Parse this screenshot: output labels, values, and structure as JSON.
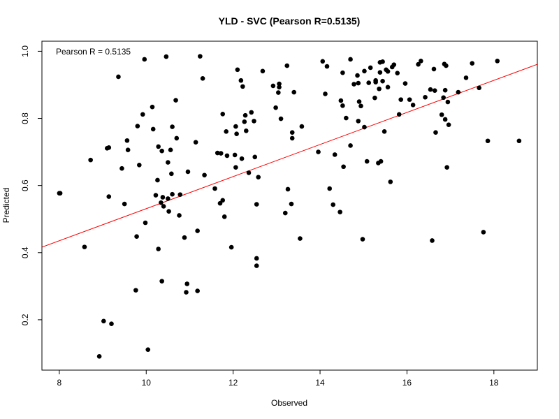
{
  "chart_data": {
    "type": "scatter",
    "title": "YLD - SVC (Pearson R=0.5135)",
    "xlabel": "Observed",
    "ylabel": "Predicted",
    "annotation": "Pearson R = 0.5135",
    "xlim": [
      7.6,
      19.0
    ],
    "ylim": [
      0.05,
      1.03
    ],
    "xticks": [
      8,
      10,
      12,
      14,
      16,
      18
    ],
    "yticks": [
      0.2,
      0.4,
      0.6,
      0.8,
      1.0
    ],
    "xtick_labels": [
      "8",
      "10",
      "12",
      "14",
      "16",
      "18"
    ],
    "ytick_labels": [
      "0.2",
      "0.4",
      "0.6",
      "0.8",
      "1.0"
    ],
    "grid": false,
    "point_color": "#000000",
    "fit_line": {
      "color": "#ff0000",
      "intercept": 0.053,
      "slope": 0.0478
    },
    "points": [
      [
        8.0,
        0.577
      ],
      [
        8.02,
        0.577
      ],
      [
        8.58,
        0.417
      ],
      [
        8.72,
        0.676
      ],
      [
        8.92,
        0.091
      ],
      [
        9.02,
        0.196
      ],
      [
        9.1,
        0.711
      ],
      [
        9.14,
        0.713
      ],
      [
        9.14,
        0.567
      ],
      [
        9.2,
        0.188
      ],
      [
        9.36,
        0.924
      ],
      [
        9.44,
        0.651
      ],
      [
        9.5,
        0.545
      ],
      [
        9.56,
        0.734
      ],
      [
        9.58,
        0.706
      ],
      [
        9.76,
        0.288
      ],
      [
        9.78,
        0.448
      ],
      [
        9.8,
        0.777
      ],
      [
        9.84,
        0.661
      ],
      [
        9.92,
        0.812
      ],
      [
        9.96,
        0.976
      ],
      [
        9.98,
        0.489
      ],
      [
        10.04,
        0.111
      ],
      [
        10.14,
        0.834
      ],
      [
        10.16,
        0.768
      ],
      [
        10.22,
        0.571
      ],
      [
        10.26,
        0.616
      ],
      [
        10.28,
        0.411
      ],
      [
        10.28,
        0.716
      ],
      [
        10.34,
        0.549
      ],
      [
        10.36,
        0.315
      ],
      [
        10.36,
        0.703
      ],
      [
        10.38,
        0.565
      ],
      [
        10.4,
        0.538
      ],
      [
        10.46,
        0.984
      ],
      [
        10.5,
        0.669
      ],
      [
        10.5,
        0.561
      ],
      [
        10.52,
        0.523
      ],
      [
        10.56,
        0.706
      ],
      [
        10.58,
        0.635
      ],
      [
        10.6,
        0.775
      ],
      [
        10.6,
        0.574
      ],
      [
        10.68,
        0.854
      ],
      [
        10.7,
        0.741
      ],
      [
        10.76,
        0.511
      ],
      [
        10.78,
        0.573
      ],
      [
        10.88,
        0.445
      ],
      [
        10.92,
        0.282
      ],
      [
        10.94,
        0.307
      ],
      [
        10.96,
        0.641
      ],
      [
        11.14,
        0.729
      ],
      [
        11.18,
        0.465
      ],
      [
        11.18,
        0.286
      ],
      [
        11.24,
        0.985
      ],
      [
        11.3,
        0.919
      ],
      [
        11.34,
        0.631
      ],
      [
        11.58,
        0.591
      ],
      [
        11.64,
        0.697
      ],
      [
        11.7,
        0.547
      ],
      [
        11.72,
        0.696
      ],
      [
        11.76,
        0.556
      ],
      [
        11.76,
        0.813
      ],
      [
        11.8,
        0.507
      ],
      [
        11.84,
        0.761
      ],
      [
        11.86,
        0.689
      ],
      [
        11.96,
        0.416
      ],
      [
        12.04,
        0.691
      ],
      [
        12.06,
        0.776
      ],
      [
        12.06,
        0.654
      ],
      [
        12.08,
        0.754
      ],
      [
        12.1,
        0.945
      ],
      [
        12.18,
        0.913
      ],
      [
        12.2,
        0.68
      ],
      [
        12.22,
        0.895
      ],
      [
        12.26,
        0.79
      ],
      [
        12.28,
        0.809
      ],
      [
        12.3,
        0.763
      ],
      [
        12.36,
        0.638
      ],
      [
        12.42,
        0.818
      ],
      [
        12.48,
        0.792
      ],
      [
        12.5,
        0.685
      ],
      [
        12.54,
        0.544
      ],
      [
        12.54,
        0.383
      ],
      [
        12.54,
        0.361
      ],
      [
        12.58,
        0.625
      ],
      [
        12.68,
        0.941
      ],
      [
        12.92,
        0.897
      ],
      [
        12.98,
        0.832
      ],
      [
        13.04,
        0.877
      ],
      [
        13.06,
        0.903
      ],
      [
        13.06,
        0.893
      ],
      [
        13.1,
        0.799
      ],
      [
        13.2,
        0.518
      ],
      [
        13.24,
        0.957
      ],
      [
        13.26,
        0.589
      ],
      [
        13.34,
        0.545
      ],
      [
        13.36,
        0.758
      ],
      [
        13.36,
        0.741
      ],
      [
        13.4,
        0.878
      ],
      [
        13.54,
        0.442
      ],
      [
        13.58,
        0.776
      ],
      [
        13.96,
        0.7
      ],
      [
        14.06,
        0.97
      ],
      [
        14.12,
        0.873
      ],
      [
        14.16,
        0.955
      ],
      [
        14.22,
        0.591
      ],
      [
        14.3,
        0.543
      ],
      [
        14.34,
        0.692
      ],
      [
        14.46,
        0.521
      ],
      [
        14.48,
        0.853
      ],
      [
        14.52,
        0.936
      ],
      [
        14.52,
        0.838
      ],
      [
        14.54,
        0.656
      ],
      [
        14.6,
        0.801
      ],
      [
        14.7,
        0.976
      ],
      [
        14.7,
        0.719
      ],
      [
        14.78,
        0.902
      ],
      [
        14.86,
        0.928
      ],
      [
        14.88,
        0.792
      ],
      [
        14.88,
        0.905
      ],
      [
        14.9,
        0.85
      ],
      [
        14.94,
        0.837
      ],
      [
        14.98,
        0.44
      ],
      [
        15.02,
        0.774
      ],
      [
        15.02,
        0.941
      ],
      [
        15.08,
        0.672
      ],
      [
        15.12,
        0.906
      ],
      [
        15.16,
        0.951
      ],
      [
        15.26,
        0.861
      ],
      [
        15.28,
        0.913
      ],
      [
        15.28,
        0.908
      ],
      [
        15.34,
        0.667
      ],
      [
        15.36,
        0.888
      ],
      [
        15.38,
        0.937
      ],
      [
        15.38,
        0.967
      ],
      [
        15.4,
        0.672
      ],
      [
        15.44,
        0.969
      ],
      [
        15.44,
        0.911
      ],
      [
        15.48,
        0.761
      ],
      [
        15.52,
        0.945
      ],
      [
        15.56,
        0.893
      ],
      [
        15.56,
        0.94
      ],
      [
        15.62,
        0.611
      ],
      [
        15.66,
        0.953
      ],
      [
        15.7,
        0.96
      ],
      [
        15.78,
        0.935
      ],
      [
        15.82,
        0.812
      ],
      [
        15.86,
        0.856
      ],
      [
        15.96,
        0.904
      ],
      [
        16.06,
        0.856
      ],
      [
        16.14,
        0.84
      ],
      [
        16.26,
        0.961
      ],
      [
        16.32,
        0.971
      ],
      [
        16.42,
        0.863
      ],
      [
        16.54,
        0.886
      ],
      [
        16.58,
        0.436
      ],
      [
        16.62,
        0.947
      ],
      [
        16.64,
        0.883
      ],
      [
        16.66,
        0.758
      ],
      [
        16.8,
        0.811
      ],
      [
        16.84,
        0.862
      ],
      [
        16.86,
        0.962
      ],
      [
        16.88,
        0.884
      ],
      [
        16.88,
        0.797
      ],
      [
        16.9,
        0.957
      ],
      [
        16.92,
        0.654
      ],
      [
        16.94,
        0.849
      ],
      [
        16.96,
        0.781
      ],
      [
        17.18,
        0.878
      ],
      [
        17.36,
        0.921
      ],
      [
        17.5,
        0.964
      ],
      [
        17.66,
        0.891
      ],
      [
        17.76,
        0.461
      ],
      [
        17.86,
        0.733
      ],
      [
        18.08,
        0.971
      ],
      [
        18.58,
        0.733
      ]
    ]
  }
}
